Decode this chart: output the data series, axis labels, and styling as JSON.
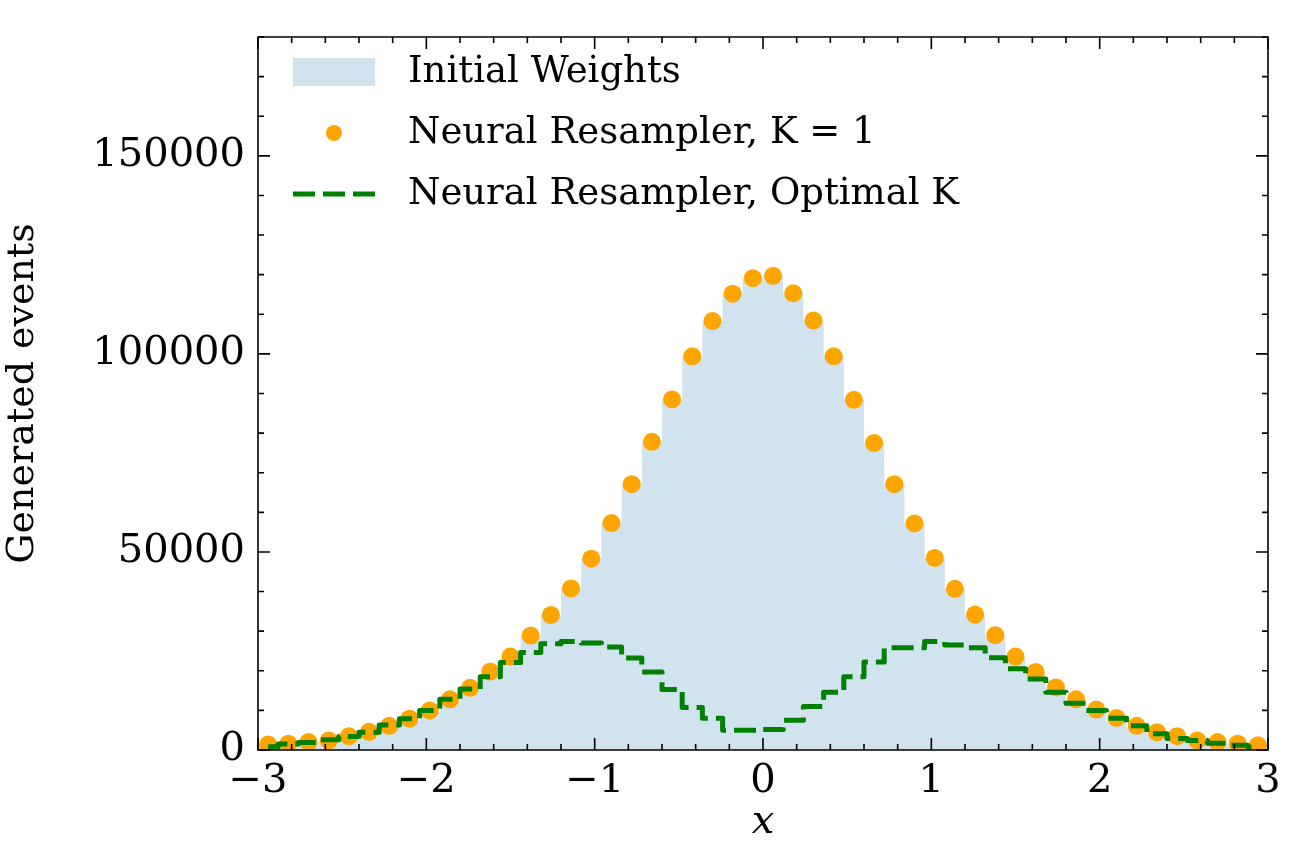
{
  "chart_data": {
    "type": "histogram",
    "xlabel": "x",
    "ylabel": "Generated events",
    "bins": [
      -3,
      -2.88,
      -2.76,
      -2.64,
      -2.52,
      -2.4,
      -2.28,
      -2.16,
      -2.04,
      -1.92,
      -1.8,
      -1.68,
      -1.56,
      -1.44,
      -1.32,
      -1.2,
      -1.08,
      -0.96,
      -0.84,
      -0.72,
      -0.6,
      -0.48,
      -0.36,
      -0.24,
      -0.12,
      0,
      0.12,
      0.24,
      0.36,
      0.48,
      0.6,
      0.72,
      0.84,
      0.96,
      1.08,
      1.2,
      1.32,
      1.44,
      1.56,
      1.68,
      1.8,
      1.92,
      2.04,
      2.16,
      2.28,
      2.4,
      2.52,
      2.64,
      2.76,
      2.88,
      3
    ],
    "series": [
      {
        "name": "Initial Weights",
        "type": "histogram",
        "color": "#d1e3ef",
        "values": [
          1000,
          1300,
          1700,
          2200,
          3000,
          4100,
          5600,
          7400,
          9500,
          12300,
          15300,
          19400,
          23300,
          28700,
          34000,
          40700,
          48300,
          57300,
          67100,
          77800,
          88500,
          99400,
          108300,
          115200,
          119100,
          119700,
          115300,
          108400,
          99400,
          88400,
          77500,
          67100,
          57200,
          48500,
          40700,
          34000,
          28700,
          23300,
          19400,
          15300,
          12300,
          9500,
          7400,
          5600,
          4100,
          3000,
          2200,
          1700,
          1300,
          1000
        ]
      },
      {
        "name": "Neural Resampler, K = 1",
        "type": "scatter",
        "marker": "circle",
        "color": "#ffa500",
        "x": [
          -2.94,
          -2.82,
          -2.7,
          -2.58,
          -2.46,
          -2.34,
          -2.22,
          -2.1,
          -1.98,
          -1.86,
          -1.74,
          -1.62,
          -1.5,
          -1.38,
          -1.26,
          -1.14,
          -1.02,
          -0.9,
          -0.78,
          -0.66,
          -0.54,
          -0.42,
          -0.3,
          -0.18,
          -0.06,
          0.06,
          0.18,
          0.3,
          0.42,
          0.54,
          0.66,
          0.78,
          0.9,
          1.02,
          1.14,
          1.26,
          1.38,
          1.5,
          1.62,
          1.74,
          1.86,
          1.98,
          2.1,
          2.22,
          2.34,
          2.46,
          2.58,
          2.7,
          2.82,
          2.94
        ],
        "values": [
          1400,
          1600,
          2000,
          2400,
          3500,
          4600,
          6100,
          7900,
          10000,
          12800,
          15700,
          19800,
          23600,
          28900,
          34100,
          40800,
          48300,
          57300,
          67100,
          77800,
          88500,
          99400,
          108300,
          115200,
          119100,
          119700,
          115300,
          108400,
          99400,
          88400,
          77500,
          67100,
          57200,
          48500,
          40700,
          34200,
          29000,
          23600,
          19700,
          15800,
          12800,
          10200,
          8100,
          6100,
          4500,
          3500,
          2400,
          2000,
          1600,
          1200
        ]
      },
      {
        "name": "Neural Resampler, Optimal K",
        "type": "step",
        "line_style": "dashed",
        "color": "#008000",
        "x": [
          -2.94,
          -2.82,
          -2.7,
          -2.58,
          -2.46,
          -2.34,
          -2.22,
          -2.1,
          -1.98,
          -1.86,
          -1.74,
          -1.62,
          -1.5,
          -1.38,
          -1.26,
          -1.14,
          -1.02,
          -0.9,
          -0.78,
          -0.66,
          -0.54,
          -0.42,
          -0.3,
          -0.18,
          -0.06,
          0.06,
          0.18,
          0.3,
          0.42,
          0.54,
          0.66,
          0.78,
          0.9,
          1.02,
          1.14,
          1.26,
          1.38,
          1.5,
          1.62,
          1.74,
          1.86,
          1.98,
          2.1,
          2.22,
          2.34,
          2.46,
          2.58,
          2.7,
          2.82,
          2.94
        ],
        "values": [
          800,
          1500,
          1900,
          2600,
          3400,
          4500,
          6300,
          7900,
          10000,
          12800,
          15400,
          18500,
          22100,
          24600,
          26800,
          27400,
          27000,
          26000,
          23200,
          19700,
          15300,
          10700,
          8000,
          5000,
          5000,
          5200,
          7500,
          11000,
          14600,
          18500,
          22200,
          25800,
          25800,
          27400,
          26500,
          25800,
          23300,
          20500,
          17900,
          14600,
          11800,
          10000,
          8000,
          6100,
          4100,
          2900,
          2400,
          1700,
          1200,
          700
        ]
      }
    ],
    "xlim": [
      -3,
      3
    ],
    "xticks": [
      {
        "value": -3,
        "label": "−3"
      },
      {
        "value": -2,
        "label": "−2"
      },
      {
        "value": -1,
        "label": "−1"
      },
      0,
      1,
      2,
      3
    ],
    "ylim": [
      0,
      180000
    ],
    "yticks": [
      0,
      50000,
      100000,
      150000
    ],
    "legend": "top left",
    "grid": false
  }
}
